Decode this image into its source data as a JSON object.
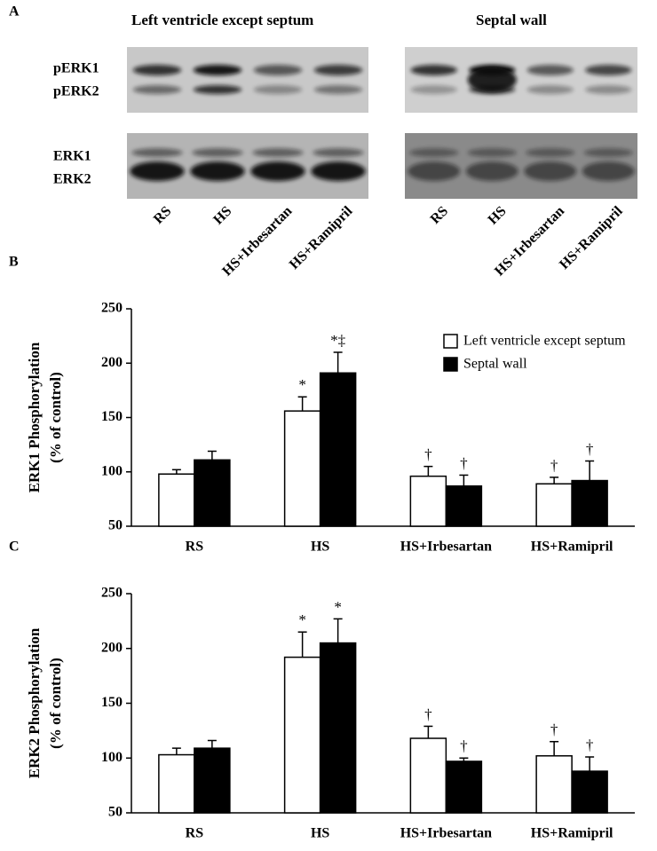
{
  "blot": {
    "panel": "A",
    "titles": [
      "Left ventricle except septum",
      "Septal wall"
    ],
    "row_labels": [
      "pERK1",
      "pERK2",
      "ERK1",
      "ERK2"
    ],
    "lanes": [
      "RS",
      "HS",
      "HS+Irbesartan",
      "HS+Ramipril"
    ]
  },
  "chart_data": [
    {
      "type": "bar",
      "panel": "B",
      "ylabel": [
        "ERK1 Phosphorylation",
        "(% of control)"
      ],
      "categories": [
        "RS",
        "HS",
        "HS+Irbesartan",
        "HS+Ramipril"
      ],
      "series": [
        {
          "name": "Left ventricle except septum",
          "color": "#ffffff",
          "values": [
            98,
            156,
            96,
            89
          ],
          "errors": [
            4,
            13,
            9,
            6
          ],
          "markers": [
            null,
            "*",
            "†",
            "†"
          ]
        },
        {
          "name": "Septal wall",
          "color": "#000000",
          "values": [
            111,
            191,
            87,
            92
          ],
          "errors": [
            8,
            19,
            10,
            18
          ],
          "markers": [
            null,
            "*‡",
            "†",
            "†"
          ]
        }
      ],
      "edgecolor": "#000000",
      "ylim": [
        50,
        250
      ],
      "yticks": [
        50,
        100,
        150,
        200,
        250
      ],
      "legend": "top-right"
    },
    {
      "type": "bar",
      "panel": "C",
      "ylabel": [
        "ERK2 Phosphorylation",
        "(% of control)"
      ],
      "categories": [
        "RS",
        "HS",
        "HS+Irbesartan",
        "HS+Ramipril"
      ],
      "series": [
        {
          "color": "#ffffff",
          "values": [
            103,
            192,
            118,
            102
          ],
          "errors": [
            6,
            23,
            11,
            13
          ],
          "markers": [
            null,
            "*",
            "†",
            "†"
          ]
        },
        {
          "color": "#000000",
          "values": [
            109,
            205,
            97,
            88
          ],
          "errors": [
            7,
            22,
            3,
            13
          ],
          "markers": [
            null,
            "*",
            "†",
            "†"
          ]
        }
      ],
      "edgecolor": "#000000",
      "ylim": [
        50,
        250
      ],
      "yticks": [
        50,
        100,
        150,
        200,
        250
      ]
    }
  ]
}
